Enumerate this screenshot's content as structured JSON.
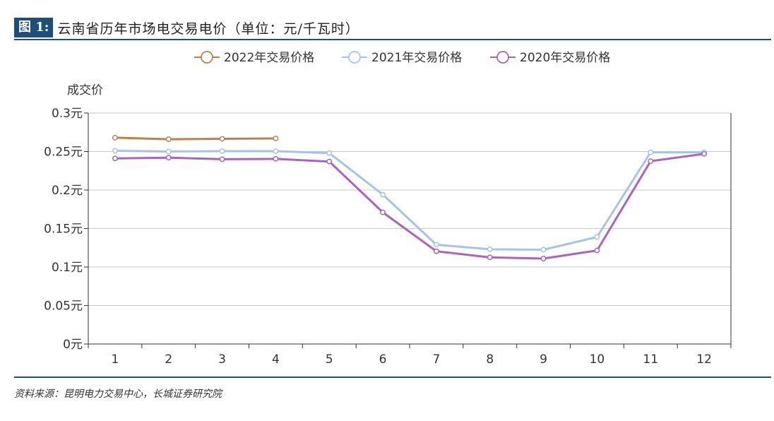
{
  "header": {
    "label": "图 1:",
    "title": "云南省历年市场电交易电价（单位：元/千瓦时）"
  },
  "source": "资料来源：昆明电力交易中心，长城证券研究院",
  "chart_data": {
    "type": "line",
    "ylabel": "成交价",
    "x": [
      "1",
      "2",
      "3",
      "4",
      "5",
      "6",
      "7",
      "8",
      "9",
      "10",
      "11",
      "12"
    ],
    "ylim": [
      0,
      0.3
    ],
    "yticks": [
      "0元",
      "0.05元",
      "0.1元",
      "0.15元",
      "0.2元",
      "0.25元",
      "0.3元"
    ],
    "ytick_values": [
      0,
      0.05,
      0.1,
      0.15,
      0.2,
      0.25,
      0.3
    ],
    "grid": true,
    "legend_position": "top-center",
    "series": [
      {
        "name": "2022年交易价格",
        "color": "#c0804a",
        "values": [
          0.268,
          0.266,
          0.2665,
          0.267,
          null,
          null,
          null,
          null,
          null,
          null,
          null,
          null
        ]
      },
      {
        "name": "2021年交易价格",
        "color": "#a9c3e8",
        "values": [
          0.251,
          0.25,
          0.2505,
          0.2505,
          0.248,
          0.194,
          0.129,
          0.123,
          0.1225,
          0.139,
          0.249,
          0.249
        ]
      },
      {
        "name": "2020年交易价格",
        "color": "#a865be",
        "values": [
          0.241,
          0.242,
          0.24,
          0.2405,
          0.237,
          0.171,
          0.1205,
          0.1125,
          0.111,
          0.1215,
          0.2375,
          0.247
        ]
      }
    ]
  }
}
